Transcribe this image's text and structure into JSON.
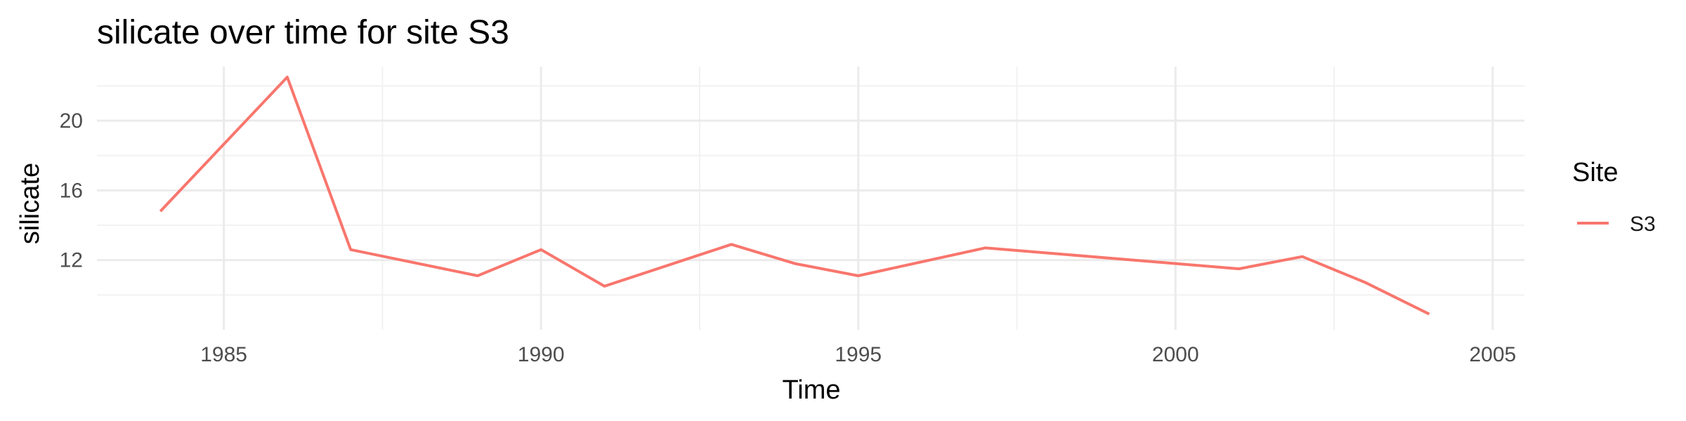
{
  "chart_data": {
    "type": "line",
    "title": "silicate over time for site S3",
    "xlabel": "Time",
    "ylabel": "silicate",
    "xlim": [
      1983,
      2005.5
    ],
    "ylim": [
      8.0,
      23.1
    ],
    "x_ticks": [
      1985,
      1990,
      1995,
      2000,
      2005
    ],
    "y_ticks": [
      12,
      16,
      20
    ],
    "grid": true,
    "legend": {
      "title": "Site",
      "position": "right"
    },
    "series": [
      {
        "name": "S3",
        "color": "#F8766D",
        "x": [
          1984,
          1986,
          1987,
          1989,
          1990,
          1991,
          1993,
          1994,
          1995,
          1997,
          2000,
          2001,
          2002,
          2003,
          2004
        ],
        "y": [
          14.8,
          22.5,
          12.6,
          11.1,
          12.6,
          10.5,
          12.9,
          11.8,
          11.1,
          12.7,
          11.8,
          11.5,
          12.2,
          10.7,
          8.9
        ]
      }
    ]
  }
}
